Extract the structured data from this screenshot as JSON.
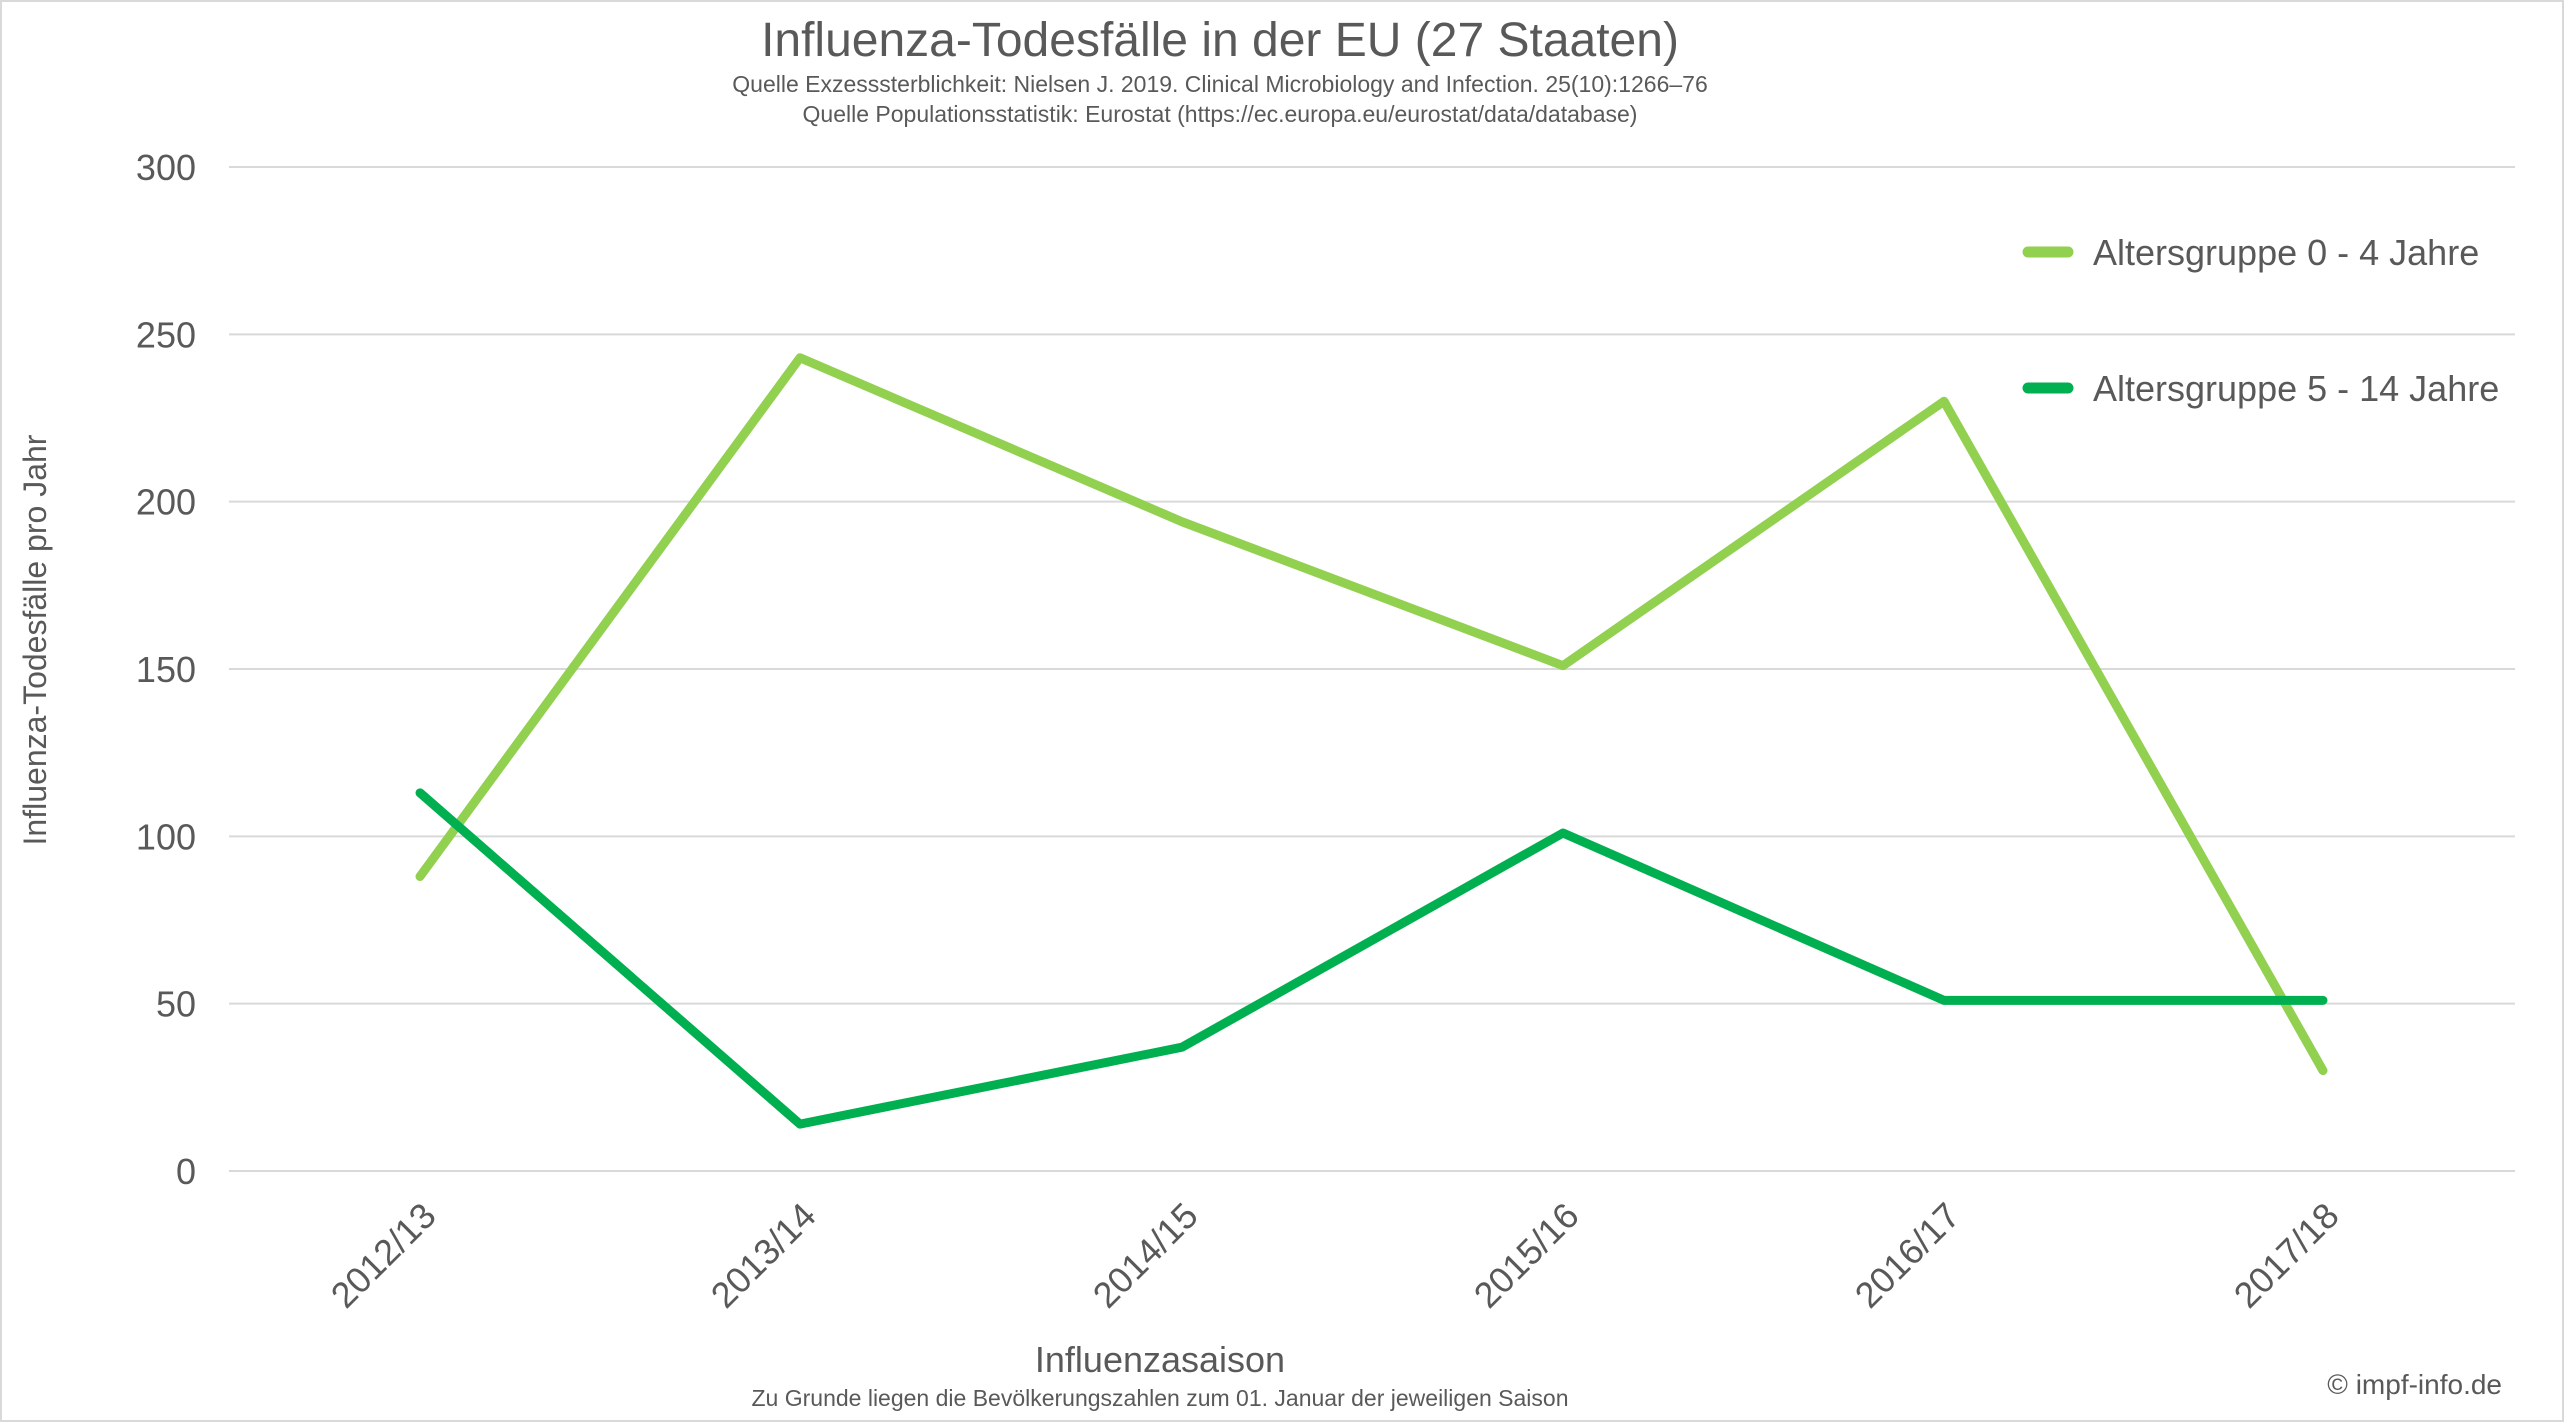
{
  "chart_data": {
    "type": "line",
    "title": "Influenza-Todesfälle in der EU (27 Staaten)",
    "subtitle_lines": [
      "Quelle Exzesssterblichkeit: Nielsen J. 2019. Clinical Microbiology and Infection. 25(10):1266–76",
      "Quelle Populationsstatistik: Eurostat (https://ec.europa.eu/eurostat/data/database)"
    ],
    "xlabel": "Influenzasaison",
    "ylabel": "Influenza-Todesfälle  pro Jahr",
    "footnote": "Zu Grunde liegen die Bevölkerungszahlen zum 01. Januar der jeweiligen Saison",
    "copyright": "© impf-info.de",
    "categories": [
      "2012/13",
      "2013/14",
      "2014/15",
      "2015/16",
      "2016/17",
      "2017/18"
    ],
    "ylim": [
      0,
      300
    ],
    "yticks": [
      0,
      50,
      100,
      150,
      200,
      250,
      300
    ],
    "grid": true,
    "legend_position": "top-right",
    "series": [
      {
        "name": "Altersgruppe 0 - 4 Jahre",
        "color": "#92d050",
        "values": [
          88,
          243,
          194,
          151,
          230,
          30
        ]
      },
      {
        "name": "Altersgruppe 5 - 14 Jahre",
        "color": "#00b050",
        "values": [
          113,
          14,
          37,
          101,
          51,
          51
        ]
      }
    ]
  }
}
